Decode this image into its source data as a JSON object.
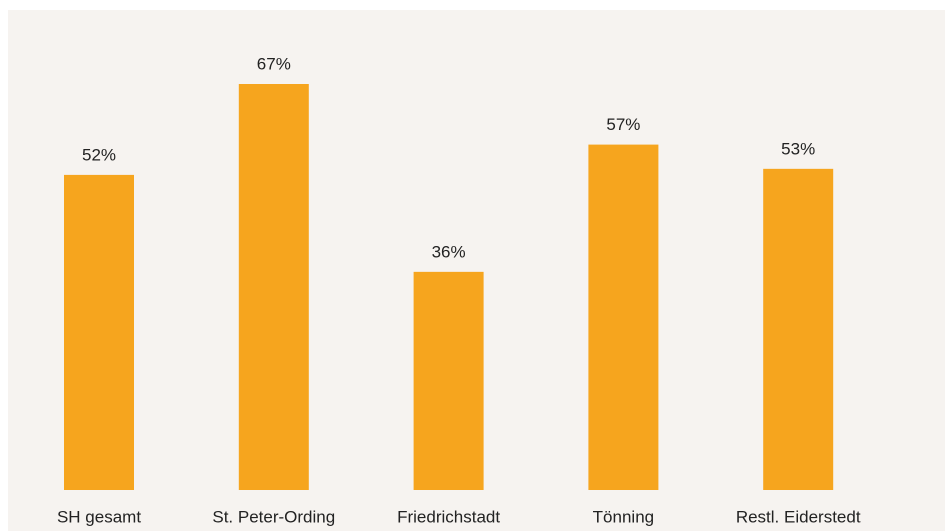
{
  "chart_data": {
    "type": "bar",
    "categories": [
      "SH gesamt",
      "St. Peter-Ording",
      "Friedrichstadt",
      "Tönning",
      "Restl. Eiderstedt"
    ],
    "values": [
      52,
      67,
      36,
      57,
      53
    ],
    "value_labels": [
      "52%",
      "67%",
      "36%",
      "57%",
      "53%"
    ],
    "color": "#f6a51e"
  }
}
